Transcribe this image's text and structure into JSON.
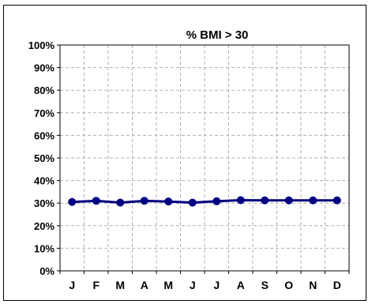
{
  "chart_data": {
    "type": "line",
    "title": "% BMI > 30",
    "xlabel": "",
    "ylabel": "",
    "categories": [
      "J",
      "F",
      "M",
      "A",
      "M",
      "J",
      "J",
      "A",
      "S",
      "O",
      "N",
      "D"
    ],
    "series": [
      {
        "values": [
          30.5,
          31.0,
          30.2,
          31.0,
          30.7,
          30.2,
          30.8,
          31.3,
          31.2,
          31.2,
          31.2,
          31.2
        ]
      }
    ],
    "ylim": [
      0,
      100
    ],
    "yticks": [
      "0%",
      "10%",
      "20%",
      "30%",
      "40%",
      "50%",
      "60%",
      "70%",
      "80%",
      "90%",
      "100%"
    ],
    "grid": true,
    "line_color": "#000080",
    "marker_color": "#000080",
    "grid_color": "#b0b0b0"
  }
}
